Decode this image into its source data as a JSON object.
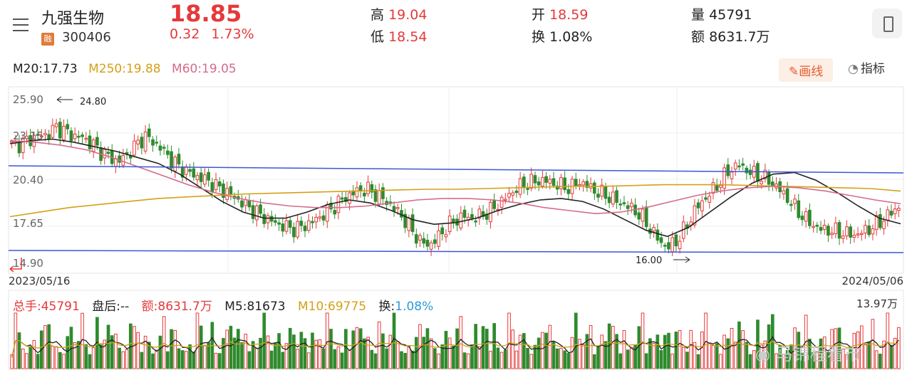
{
  "header": {
    "stock_name": "九强生物",
    "badge": "融",
    "stock_code": "300406",
    "price": "18.85",
    "change": "0.32",
    "change_pct": "1.73%",
    "high_label": "高",
    "high": "19.04",
    "low_label": "低",
    "low": "18.54",
    "open_label": "开",
    "open": "18.59",
    "turnover_label": "换",
    "turnover": "1.08%",
    "volume_label": "量",
    "volume": "45791",
    "amount_label": "额",
    "amount": "8631.7万"
  },
  "ma_legend": {
    "m20": "M20:17.73",
    "m250": "M250:19.88",
    "m60": "M60:19.05"
  },
  "tools": {
    "draw": "画线",
    "indicator": "指标"
  },
  "chart_data": [
    {
      "type": "candlestick",
      "y_ticks": [
        "25.90",
        "23.15",
        "20.40",
        "17.65",
        "14.90"
      ],
      "ylim": [
        14.9,
        25.9
      ],
      "date_start": "2023/05/16",
      "date_end": "2024/05/06",
      "annotations": {
        "max_label": "24.80",
        "min_label": "16.00"
      },
      "sample_closes": [
        22.9,
        23.0,
        23.3,
        23.5,
        23.6,
        24.1,
        23.8,
        23.5,
        23.4,
        23.0,
        22.5,
        22.1,
        21.8,
        22.3,
        22.9,
        23.5,
        23.1,
        22.6,
        21.9,
        21.4,
        21.1,
        20.8,
        20.6,
        20.2,
        19.9,
        19.5,
        19.1,
        18.7,
        18.3,
        18.0,
        17.7,
        17.5,
        17.4,
        17.6,
        17.9,
        18.3,
        18.7,
        19.2,
        19.6,
        19.9,
        20.0,
        19.7,
        19.3,
        18.8,
        18.2,
        17.4,
        16.6,
        16.3,
        16.8,
        17.5,
        18.0,
        18.2,
        18.1,
        18.3,
        18.6,
        19.1,
        19.6,
        20.1,
        20.4,
        20.5,
        20.6,
        20.4,
        20.2,
        20.1,
        20.5,
        20.2,
        19.8,
        19.6,
        19.3,
        19.0,
        18.7,
        18.2,
        17.4,
        16.6,
        16.2,
        16.6,
        17.5,
        18.6,
        19.3,
        19.9,
        20.6,
        21.3,
        21.6,
        21.2,
        20.9,
        20.7,
        20.3,
        19.7,
        19.0,
        18.3,
        17.8,
        17.4,
        17.3,
        17.2,
        17.1,
        17.0,
        17.2,
        17.5,
        17.9,
        18.4,
        18.85
      ],
      "series": [
        {
          "name": "M20",
          "color": "#222222",
          "values": [
            23.0,
            23.2,
            23.3,
            23.1,
            22.8,
            22.5,
            22.1,
            21.7,
            21.0,
            20.1,
            19.2,
            18.5,
            18.1,
            18.1,
            18.5,
            19.0,
            19.3,
            19.1,
            18.6,
            18.0,
            17.7,
            17.8,
            18.1,
            18.6,
            19.0,
            19.3,
            19.4,
            19.2,
            18.7,
            18.0,
            17.3,
            16.9,
            17.5,
            18.5,
            19.5,
            20.4,
            21.0,
            21.1,
            20.6,
            19.8,
            18.9,
            18.1,
            17.73
          ]
        },
        {
          "name": "M250",
          "color": "#d4a017",
          "values": [
            18.2,
            18.5,
            18.8,
            19.0,
            19.2,
            19.4,
            19.5,
            19.6,
            19.7,
            19.75,
            19.8,
            19.85,
            19.9,
            19.95,
            20.0,
            20.0,
            20.05,
            20.1,
            20.15,
            20.2,
            20.2,
            20.25,
            20.3,
            20.3,
            20.3,
            20.25,
            20.2,
            20.15,
            20.1,
            20.05,
            19.88
          ]
        },
        {
          "name": "M60",
          "color": "#d56b8a",
          "values": [
            23.2,
            23.1,
            22.9,
            22.6,
            22.1,
            21.5,
            20.9,
            20.3,
            19.8,
            19.4,
            19.1,
            18.9,
            18.8,
            18.8,
            18.9,
            19.1,
            19.3,
            19.4,
            19.4,
            19.3,
            19.1,
            18.8,
            18.6,
            18.4,
            18.5,
            18.8,
            19.2,
            19.6,
            19.9,
            20.1,
            20.2,
            20.1,
            19.9,
            19.6,
            19.3,
            19.05
          ]
        }
      ]
    },
    {
      "type": "bar",
      "y_top_label": "13.97万",
      "legend": {
        "total_label": "总手:",
        "total": "45791",
        "after_label": "盘后:",
        "after": "--",
        "amount_label": "额:",
        "amount": "8631.7万",
        "m5_label": "M5:",
        "m5": "81673",
        "m10_label": "M10:",
        "m10": "69775",
        "turn_label": "换:",
        "turn": "1.08%"
      }
    }
  ],
  "colors": {
    "up": "#e5393a",
    "down": "#2e8b2e",
    "channel": "#3f55d6",
    "m20": "#222222",
    "m250": "#d4a017",
    "m60": "#d56b8a",
    "watermark": "#cccccc"
  },
  "watermark": "马锦程看市"
}
